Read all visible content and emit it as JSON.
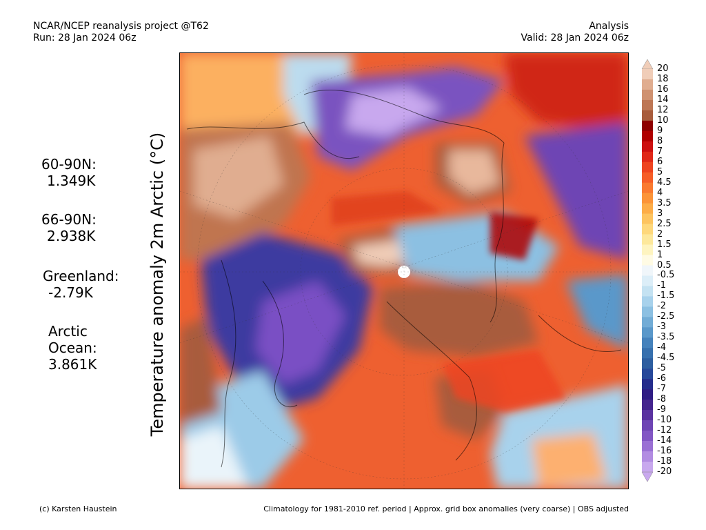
{
  "header": {
    "left_line1": "NCAR/NCEP reanalysis project @T62",
    "left_line2": "Run: 28 Jan 2024 06z",
    "right_line1": "Analysis",
    "right_line2": "Valid: 28 Jan 2024 06z"
  },
  "y_axis_label": "Temperature anomaly 2m Arctic (°C)",
  "stats": [
    {
      "label": "60-90N:",
      "value": "1.349K"
    },
    {
      "label": "66-90N:",
      "value": "2.938K"
    },
    {
      "label": "Greenland:",
      "value": "-2.79K"
    },
    {
      "label": "Arctic Ocean:",
      "value": "3.861K"
    }
  ],
  "colorbar": {
    "labels": [
      "20",
      "18",
      "16",
      "14",
      "12",
      "10",
      "9",
      "8",
      "7",
      "6",
      "5",
      "4.5",
      "4",
      "3.5",
      "3",
      "2.5",
      "2",
      "1.5",
      "1",
      "0.5",
      "-0.5",
      "-1",
      "-1.5",
      "-2",
      "-2.5",
      "-3",
      "-3.5",
      "-4",
      "-4.5",
      "-5",
      "-6",
      "-7",
      "-8",
      "-9",
      "-10",
      "-12",
      "-14",
      "-16",
      "-18",
      "-20"
    ],
    "colors": [
      "#f0cdb8",
      "#e0ad90",
      "#cf9170",
      "#bd7654",
      "#a85c3c",
      "#8e0000",
      "#b00000",
      "#cc1010",
      "#e02818",
      "#ee4420",
      "#f65e28",
      "#fa7a30",
      "#fc9438",
      "#fdad48",
      "#fdc460",
      "#fed87c",
      "#fde89c",
      "#fef4c0",
      "#fffbe4",
      "#f0f6fa",
      "#dceef8",
      "#c4e2f2",
      "#a8d2ec",
      "#8cc0e2",
      "#72acd6",
      "#5a98ca",
      "#4582bc",
      "#3770ae",
      "#2d5ea0",
      "#26489a",
      "#242c8c",
      "#2f1c84",
      "#44248e",
      "#5a32a0",
      "#6e44b4",
      "#8256c4",
      "#9a70d4",
      "#b28ce2",
      "#c8a8ee"
    ]
  },
  "footer": {
    "left": "(c) Karsten Haustein",
    "right": "Climatology for 1981-2010 ref. period | Approx. grid box anomalies (very coarse) | OBS adjusted"
  }
}
